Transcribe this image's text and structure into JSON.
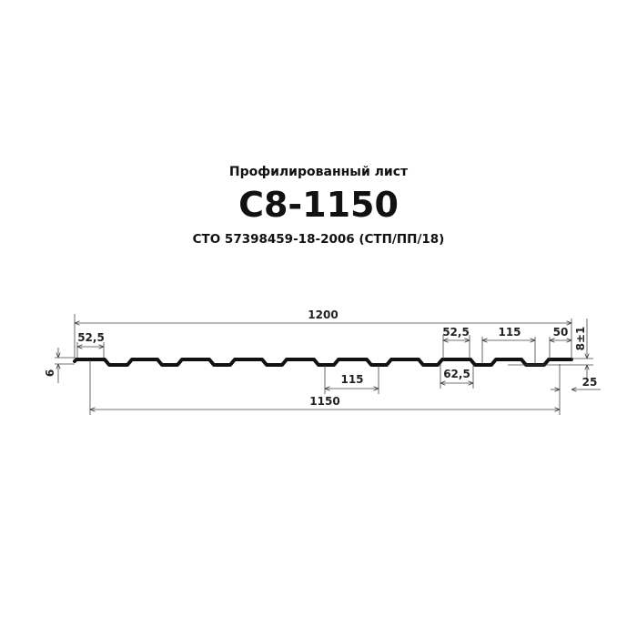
{
  "header": {
    "subtitle": "Профилированный лист",
    "title": "С8-1150",
    "standard": "СТО  57398459-18-2006  (СТП/ПП/18)"
  },
  "dimensions": {
    "total_width": "1200",
    "useful_width": "1150",
    "left_top": "52,5",
    "left_height": "6",
    "pitch_bottom": "115",
    "right_top": "52,5",
    "right_bottom": "62,5",
    "pitch_right": "115",
    "end_width": "50",
    "height": "8±1",
    "overlap": "25"
  },
  "colors": {
    "profile": "#111111",
    "lines": "#444444"
  }
}
